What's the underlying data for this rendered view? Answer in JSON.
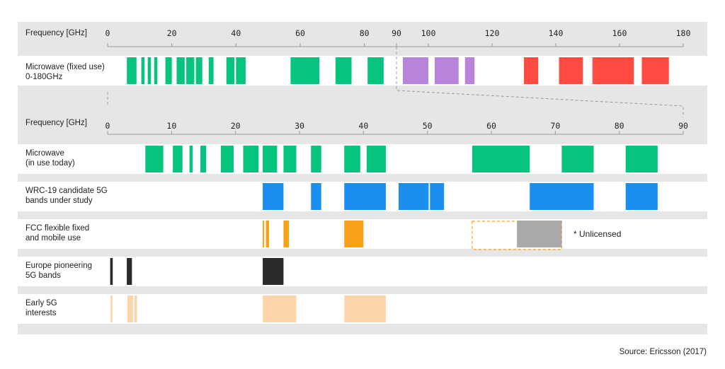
{
  "chart_data": {
    "type": "bar",
    "title": "",
    "source": "Source: Ericsson (2017)",
    "colors": {
      "microwave": "#06c47d",
      "microwave_mid": "#b884db",
      "microwave_high": "#ff4b42",
      "wrc": "#1a8ff0",
      "fcc": "#f9a11b",
      "unlicensed": "#a9a9a9",
      "unlicensed_border": "#f9a11b",
      "europe": "#2a2a2a",
      "early": "#fdd5ab",
      "band": "#e6e6e6"
    },
    "top_axis": {
      "label": "Frequency [GHz]",
      "ticks": [
        "0",
        "20",
        "40",
        "60",
        "80",
        "90",
        "100",
        "120",
        "140",
        "160",
        "180"
      ],
      "xlim": [
        0,
        180
      ]
    },
    "top_row": {
      "label_lines": [
        "Microwave (fixed use)",
        "0-180GHz"
      ],
      "segments": [
        {
          "start": 6,
          "end": 9,
          "color": "microwave"
        },
        {
          "start": 10.5,
          "end": 11.5,
          "color": "microwave"
        },
        {
          "start": 12.5,
          "end": 13.5,
          "color": "microwave"
        },
        {
          "start": 14.5,
          "end": 15.5,
          "color": "microwave"
        },
        {
          "start": 18,
          "end": 20,
          "color": "microwave"
        },
        {
          "start": 21.5,
          "end": 24,
          "color": "microwave"
        },
        {
          "start": 24.5,
          "end": 27,
          "color": "microwave"
        },
        {
          "start": 27.5,
          "end": 29.5,
          "color": "microwave"
        },
        {
          "start": 31.5,
          "end": 33,
          "color": "microwave"
        },
        {
          "start": 37,
          "end": 39.5,
          "color": "microwave"
        },
        {
          "start": 40,
          "end": 43,
          "color": "microwave"
        },
        {
          "start": 57,
          "end": 66,
          "color": "microwave"
        },
        {
          "start": 71,
          "end": 76,
          "color": "microwave"
        },
        {
          "start": 81,
          "end": 86,
          "color": "microwave"
        },
        {
          "start": 92,
          "end": 94,
          "color": "microwave_mid"
        },
        {
          "start": 94,
          "end": 100,
          "color": "microwave_mid"
        },
        {
          "start": 102,
          "end": 109.5,
          "color": "microwave_mid"
        },
        {
          "start": 111.5,
          "end": 114.5,
          "color": "microwave_mid"
        },
        {
          "start": 130,
          "end": 134.5,
          "color": "microwave_high"
        },
        {
          "start": 141,
          "end": 148.5,
          "color": "microwave_high"
        },
        {
          "start": 151.5,
          "end": 164.5,
          "color": "microwave_high"
        },
        {
          "start": 167,
          "end": 175.5,
          "color": "microwave_high"
        }
      ]
    },
    "bottom_axis": {
      "label": "Frequency [GHz]",
      "ticks": [
        "0",
        "10",
        "20",
        "30",
        "40",
        "50",
        "60",
        "70",
        "80",
        "90"
      ],
      "xlim": [
        0,
        90
      ]
    },
    "rows": [
      {
        "label_lines": [
          "Microwave",
          "(in use today)"
        ],
        "segments": [
          {
            "start": 5.9,
            "end": 8.7,
            "color": "microwave"
          },
          {
            "start": 10.2,
            "end": 11.7,
            "color": "microwave"
          },
          {
            "start": 12.8,
            "end": 13.3,
            "color": "microwave"
          },
          {
            "start": 14.5,
            "end": 15.4,
            "color": "microwave"
          },
          {
            "start": 17.7,
            "end": 19.7,
            "color": "microwave"
          },
          {
            "start": 21.2,
            "end": 23.6,
            "color": "microwave"
          },
          {
            "start": 24.25,
            "end": 26.5,
            "color": "microwave"
          },
          {
            "start": 27.5,
            "end": 29.5,
            "color": "microwave"
          },
          {
            "start": 31.8,
            "end": 33.4,
            "color": "microwave"
          },
          {
            "start": 37,
            "end": 39.5,
            "color": "microwave"
          },
          {
            "start": 40.5,
            "end": 43.5,
            "color": "microwave"
          },
          {
            "start": 57,
            "end": 66,
            "color": "microwave"
          },
          {
            "start": 71,
            "end": 76,
            "color": "microwave"
          },
          {
            "start": 81,
            "end": 86,
            "color": "microwave"
          }
        ]
      },
      {
        "label_lines": [
          "WRC-19 candidate 5G",
          "bands under study"
        ],
        "segments": [
          {
            "start": 24.25,
            "end": 27.5,
            "color": "wrc"
          },
          {
            "start": 31.8,
            "end": 33.4,
            "color": "wrc"
          },
          {
            "start": 37,
            "end": 43.5,
            "color": "wrc"
          },
          {
            "start": 45.5,
            "end": 50.2,
            "color": "wrc"
          },
          {
            "start": 50.4,
            "end": 52.6,
            "color": "wrc"
          },
          {
            "start": 66,
            "end": 76,
            "color": "wrc"
          },
          {
            "start": 81,
            "end": 86,
            "color": "wrc"
          }
        ]
      },
      {
        "label_lines": [
          "FCC flexible fixed",
          "and mobile use"
        ],
        "segments": [
          {
            "start": 24.25,
            "end": 24.45,
            "color": "fcc"
          },
          {
            "start": 24.75,
            "end": 25.25,
            "color": "fcc"
          },
          {
            "start": 27.5,
            "end": 28.35,
            "color": "fcc"
          },
          {
            "start": 37,
            "end": 40,
            "color": "fcc"
          },
          {
            "start": 64,
            "end": 71,
            "color": "unlicensed"
          }
        ],
        "unlicensed_box": {
          "start": 57,
          "end": 71
        },
        "note": "* Unlicensed"
      },
      {
        "label_lines": [
          "Europe pioneering",
          "5G bands"
        ],
        "segments": [
          {
            "start": 0.4,
            "end": 0.8,
            "color": "europe"
          },
          {
            "start": 3.0,
            "end": 3.8,
            "color": "europe"
          },
          {
            "start": 24.25,
            "end": 27.5,
            "color": "europe"
          }
        ]
      },
      {
        "label_lines": [
          "Early 5G",
          "interests"
        ],
        "segments": [
          {
            "start": 0.45,
            "end": 0.75,
            "color": "early"
          },
          {
            "start": 3.1,
            "end": 4.0,
            "color": "early"
          },
          {
            "start": 4.2,
            "end": 4.6,
            "color": "early"
          },
          {
            "start": 24.25,
            "end": 29.5,
            "color": "early"
          },
          {
            "start": 37,
            "end": 43.5,
            "color": "early"
          }
        ]
      }
    ]
  }
}
